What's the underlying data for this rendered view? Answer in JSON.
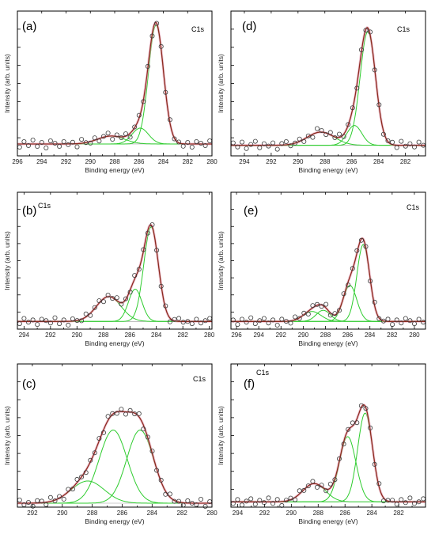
{
  "chart_data": [
    {
      "type": "line",
      "panel_label": "(a)",
      "core_label": "C1s",
      "xlabel": "Binding energy (eV)",
      "ylabel": "Intensity (arb. units)",
      "xlim": [
        296,
        280
      ],
      "xticks": [
        296,
        294,
        292,
        290,
        288,
        286,
        284,
        282,
        280
      ],
      "background": 0.06,
      "peaks": [
        {
          "center": 284.6,
          "height": 0.9,
          "fwhm": 1.45
        },
        {
          "center": 285.9,
          "height": 0.12,
          "fwhm": 1.6
        },
        {
          "center": 288.3,
          "height": 0.06,
          "fwhm": 2.6
        }
      ],
      "samples": [
        -4,
        3,
        -2,
        5,
        -3,
        2,
        -5,
        4,
        1,
        -3,
        3,
        -1,
        2,
        -4,
        5,
        0,
        -2,
        3,
        -3,
        1,
        4,
        -4,
        2,
        -1,
        3,
        -5,
        1,
        4,
        -2,
        2,
        -3,
        0,
        3,
        -2,
        4,
        -1,
        1,
        -3,
        2,
        -4,
        3,
        1,
        -2,
        4
      ]
    },
    {
      "type": "line",
      "panel_label": "(d)",
      "core_label": "C1s",
      "xlabel": "Binding energy (eV)",
      "ylabel": "Intensity (arb. units)",
      "xlim": [
        295,
        280.5
      ],
      "xticks": [
        294,
        292,
        290,
        288,
        286,
        284,
        282
      ],
      "background": 0.05,
      "peaks": [
        {
          "center": 284.8,
          "height": 0.86,
          "fwhm": 1.35
        },
        {
          "center": 285.8,
          "height": 0.15,
          "fwhm": 1.3
        },
        {
          "center": 288.3,
          "height": 0.1,
          "fwhm": 2.4
        }
      ],
      "samples": [
        3,
        -2,
        4,
        -4,
        1,
        5,
        -3,
        2,
        -1,
        3,
        -5,
        2,
        4,
        -2,
        0,
        3,
        -3,
        1,
        -4,
        5,
        2,
        -2,
        3,
        -1,
        4,
        -3,
        1,
        2,
        -5,
        3,
        -1,
        4,
        -2,
        2,
        -4,
        1,
        3,
        -3,
        5,
        -1,
        2,
        -2,
        4,
        0
      ]
    },
    {
      "type": "line",
      "panel_label": "(b)",
      "core_label": "C1s",
      "xlabel": "Binding energy (eV)",
      "ylabel": "Intensity (arb. units)",
      "xlim": [
        294.5,
        279.8
      ],
      "xticks": [
        294,
        292,
        290,
        288,
        286,
        284,
        282,
        280
      ],
      "background": 0.03,
      "peaks": [
        {
          "center": 284.4,
          "height": 0.76,
          "fwhm": 1.3
        },
        {
          "center": 285.6,
          "height": 0.26,
          "fwhm": 1.2
        },
        {
          "center": 287.6,
          "height": 0.2,
          "fwhm": 2.2
        }
      ],
      "samples": [
        -3,
        4,
        -1,
        2,
        -4,
        3,
        1,
        -2,
        5,
        -3,
        2,
        -5,
        3,
        0,
        -2,
        4,
        -3,
        1,
        3,
        -4,
        2,
        -1,
        4,
        -2,
        1,
        -3,
        5,
        -1,
        2,
        -4,
        3,
        1,
        -2,
        3,
        -5,
        2,
        4,
        -1,
        0,
        -3,
        3,
        -2,
        1,
        4
      ]
    },
    {
      "type": "line",
      "panel_label": "(e)",
      "core_label": "C1s",
      "xlabel": "Binding energy (eV)",
      "ylabel": "Intensity (arb. units)",
      "xlim": [
        296.5,
        279
      ],
      "xticks": [
        296,
        294,
        292,
        290,
        288,
        286,
        284,
        282,
        280
      ],
      "background": 0.03,
      "peaks": [
        {
          "center": 284.6,
          "height": 0.62,
          "fwhm": 1.35
        },
        {
          "center": 285.8,
          "height": 0.29,
          "fwhm": 1.45
        },
        {
          "center": 288.2,
          "height": 0.09,
          "fwhm": 1.5
        },
        {
          "center": 289.2,
          "height": 0.08,
          "fwhm": 1.9
        }
      ],
      "samples": [
        2,
        -4,
        3,
        -1,
        5,
        -3,
        1,
        4,
        -2,
        2,
        -5,
        3,
        0,
        -3,
        4,
        -1,
        2,
        -4,
        3,
        1,
        -2,
        5,
        -3,
        2,
        -1,
        4,
        -4,
        1,
        3,
        -2,
        2,
        -3,
        5,
        -1,
        0,
        3,
        -4,
        2,
        -2,
        4,
        1,
        -3,
        3,
        -1
      ]
    },
    {
      "type": "line",
      "panel_label": "(c)",
      "core_label": "C1s",
      "xlabel": "Binding energy (eV)",
      "ylabel": "Intensity (arb. units)",
      "xlim": [
        293,
        280
      ],
      "xticks": [
        292,
        290,
        288,
        286,
        284,
        282,
        280
      ],
      "background": 0.0,
      "peaks": [
        {
          "center": 284.8,
          "height": 0.56,
          "fwhm": 2.1
        },
        {
          "center": 286.6,
          "height": 0.56,
          "fwhm": 2.2
        },
        {
          "center": 288.3,
          "height": 0.17,
          "fwhm": 2.6
        }
      ],
      "samples": [
        4,
        -2,
        1,
        -4,
        3,
        2,
        -3,
        5,
        -1,
        2,
        -5,
        3,
        -2,
        4,
        0,
        -3,
        2,
        -1,
        3,
        -4,
        5,
        1,
        -2,
        3,
        -3,
        2,
        -1,
        4,
        -5,
        1,
        3,
        -2,
        2,
        -4,
        4,
        -1,
        1,
        -3,
        3,
        0,
        -2,
        5,
        -4,
        2
      ]
    },
    {
      "type": "line",
      "panel_label": "(f)",
      "core_label": "C1s",
      "xlabel": "Binding energy (eV)",
      "ylabel": "Intensity (arb. units)",
      "xlim": [
        294.5,
        280
      ],
      "xticks": [
        294,
        292,
        290,
        288,
        286,
        284,
        282
      ],
      "background": 0.01,
      "peaks": [
        {
          "center": 284.5,
          "height": 0.68,
          "fwhm": 1.3
        },
        {
          "center": 285.8,
          "height": 0.5,
          "fwhm": 1.45
        },
        {
          "center": 288.3,
          "height": 0.14,
          "fwhm": 2.0
        }
      ],
      "samples": [
        -2,
        3,
        -4,
        1,
        4,
        -3,
        2,
        -1,
        5,
        -2,
        3,
        -5,
        1,
        2,
        -3,
        4,
        -1,
        0,
        3,
        -4,
        2,
        -2,
        5,
        -1,
        3,
        -3,
        1,
        4,
        -5,
        2,
        -1,
        3,
        -2,
        4,
        -4,
        1,
        2,
        -3,
        3,
        -1,
        5,
        -2,
        0,
        4
      ]
    }
  ]
}
